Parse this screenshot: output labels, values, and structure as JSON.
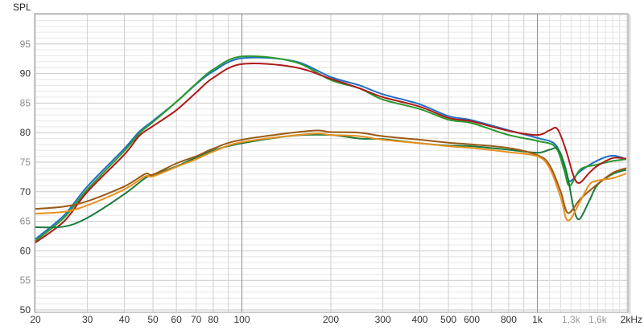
{
  "chart_data": {
    "type": "line",
    "ylabel": "SPL",
    "xscale": "log",
    "xlim": [
      20,
      2000
    ],
    "ylim": [
      50,
      100
    ],
    "grid": true,
    "y_ticks": [
      {
        "value": 50,
        "label": "50",
        "muted": false
      },
      {
        "value": 55,
        "label": "55",
        "muted": true
      },
      {
        "value": 60,
        "label": "60",
        "muted": false
      },
      {
        "value": 65,
        "label": "65",
        "muted": true
      },
      {
        "value": 70,
        "label": "70",
        "muted": false
      },
      {
        "value": 75,
        "label": "75",
        "muted": true
      },
      {
        "value": 80,
        "label": "80",
        "muted": false
      },
      {
        "value": 85,
        "label": "85",
        "muted": true
      },
      {
        "value": 90,
        "label": "90",
        "muted": false
      },
      {
        "value": 95,
        "label": "95",
        "muted": true
      }
    ],
    "x_ticks": [
      {
        "value": 20,
        "label": "20",
        "muted": false
      },
      {
        "value": 30,
        "label": "30",
        "muted": false
      },
      {
        "value": 40,
        "label": "40",
        "muted": false
      },
      {
        "value": 50,
        "label": "50",
        "muted": false
      },
      {
        "value": 60,
        "label": "60",
        "muted": false
      },
      {
        "value": 70,
        "label": "70",
        "muted": false
      },
      {
        "value": 80,
        "label": "80",
        "muted": false
      },
      {
        "value": 100,
        "label": "100",
        "muted": false
      },
      {
        "value": 200,
        "label": "200",
        "muted": false
      },
      {
        "value": 300,
        "label": "300",
        "muted": false
      },
      {
        "value": 400,
        "label": "400",
        "muted": false
      },
      {
        "value": 500,
        "label": "500",
        "muted": false
      },
      {
        "value": 600,
        "label": "600",
        "muted": false
      },
      {
        "value": 800,
        "label": "800",
        "muted": false
      },
      {
        "value": 1000,
        "label": "1k",
        "muted": false
      },
      {
        "value": 1300,
        "label": "1,3k",
        "muted": true
      },
      {
        "value": 1600,
        "label": "1,6k",
        "muted": true
      },
      {
        "value": 2000,
        "label": "2kHz",
        "muted": false
      }
    ],
    "series": [
      {
        "color": "#1f6fc4",
        "points": [
          [
            20,
            62
          ],
          [
            25,
            66
          ],
          [
            30,
            70.9
          ],
          [
            40,
            77.3
          ],
          [
            45,
            80.2
          ],
          [
            50,
            82
          ],
          [
            60,
            85.2
          ],
          [
            70,
            88.2
          ],
          [
            80,
            90.4
          ],
          [
            100,
            92.6
          ],
          [
            150,
            92.1
          ],
          [
            200,
            89.4
          ],
          [
            250,
            88
          ],
          [
            300,
            86.5
          ],
          [
            400,
            84.8
          ],
          [
            500,
            82.8
          ],
          [
            600,
            82.1
          ],
          [
            800,
            80.4
          ],
          [
            1000,
            79.1
          ],
          [
            1150,
            78
          ],
          [
            1230,
            74.5
          ],
          [
            1285,
            71.8
          ],
          [
            1400,
            73.5
          ],
          [
            1600,
            75.3
          ],
          [
            1800,
            76.1
          ],
          [
            2000,
            75.5
          ]
        ]
      },
      {
        "color": "#2a9a2a",
        "points": [
          [
            20,
            61.7
          ],
          [
            25,
            65.6
          ],
          [
            30,
            70.4
          ],
          [
            40,
            76.9
          ],
          [
            45,
            79.9
          ],
          [
            50,
            81.8
          ],
          [
            60,
            85.2
          ],
          [
            70,
            88.3
          ],
          [
            80,
            90.7
          ],
          [
            100,
            92.9
          ],
          [
            150,
            92
          ],
          [
            200,
            88.9
          ],
          [
            250,
            87.5
          ],
          [
            300,
            85.6
          ],
          [
            400,
            84
          ],
          [
            500,
            82.2
          ],
          [
            600,
            81.6
          ],
          [
            800,
            79.6
          ],
          [
            1000,
            78.6
          ],
          [
            1150,
            77.6
          ],
          [
            1230,
            73.8
          ],
          [
            1285,
            71
          ],
          [
            1400,
            73.8
          ],
          [
            1600,
            74.6
          ],
          [
            1800,
            75.2
          ],
          [
            2000,
            75.5
          ]
        ]
      },
      {
        "color": "#b01818",
        "points": [
          [
            20,
            61.4
          ],
          [
            25,
            65
          ],
          [
            30,
            70
          ],
          [
            40,
            76.3
          ],
          [
            45,
            79.5
          ],
          [
            50,
            81.1
          ],
          [
            60,
            83.8
          ],
          [
            70,
            86.8
          ],
          [
            80,
            89.3
          ],
          [
            100,
            91.6
          ],
          [
            150,
            91.1
          ],
          [
            200,
            89.1
          ],
          [
            250,
            87.5
          ],
          [
            300,
            86
          ],
          [
            400,
            84.4
          ],
          [
            500,
            82.5
          ],
          [
            600,
            81.9
          ],
          [
            800,
            80.3
          ],
          [
            1000,
            79.6
          ],
          [
            1100,
            80.4
          ],
          [
            1170,
            80.6
          ],
          [
            1250,
            77
          ],
          [
            1330,
            72.5
          ],
          [
            1390,
            71.5
          ],
          [
            1500,
            73.2
          ],
          [
            1600,
            74.4
          ],
          [
            1800,
            75.7
          ],
          [
            2000,
            75.6
          ]
        ]
      },
      {
        "color": "#1a7a3c",
        "points": [
          [
            20,
            64
          ],
          [
            25,
            64.1
          ],
          [
            30,
            65.6
          ],
          [
            40,
            69.6
          ],
          [
            47,
            72.3
          ],
          [
            50,
            72.8
          ],
          [
            60,
            74.3
          ],
          [
            70,
            75.8
          ],
          [
            80,
            77
          ],
          [
            100,
            78.2
          ],
          [
            150,
            79.5
          ],
          [
            200,
            79.6
          ],
          [
            250,
            79
          ],
          [
            300,
            78.9
          ],
          [
            400,
            78.2
          ],
          [
            500,
            77.8
          ],
          [
            600,
            77.7
          ],
          [
            800,
            77.1
          ],
          [
            1000,
            76.6
          ],
          [
            1100,
            77.1
          ],
          [
            1180,
            77.1
          ],
          [
            1260,
            73
          ],
          [
            1330,
            67
          ],
          [
            1390,
            65.4
          ],
          [
            1500,
            68.5
          ],
          [
            1600,
            71.2
          ],
          [
            1800,
            73
          ],
          [
            2000,
            73.7
          ]
        ]
      },
      {
        "color": "#9a5a14",
        "points": [
          [
            20,
            67.1
          ],
          [
            25,
            67.5
          ],
          [
            30,
            68.4
          ],
          [
            40,
            70.9
          ],
          [
            47,
            73
          ],
          [
            50,
            72.9
          ],
          [
            60,
            74.8
          ],
          [
            70,
            76
          ],
          [
            80,
            77.3
          ],
          [
            100,
            78.8
          ],
          [
            170,
            80.3
          ],
          [
            200,
            80.1
          ],
          [
            250,
            80
          ],
          [
            300,
            79.4
          ],
          [
            400,
            78.8
          ],
          [
            500,
            78.3
          ],
          [
            600,
            78
          ],
          [
            800,
            77.4
          ],
          [
            1000,
            76.2
          ],
          [
            1100,
            74.5
          ],
          [
            1200,
            70
          ],
          [
            1270,
            66.4
          ],
          [
            1400,
            68.8
          ],
          [
            1600,
            71.3
          ],
          [
            1800,
            73.2
          ],
          [
            2000,
            74
          ]
        ]
      },
      {
        "color": "#e8901f",
        "points": [
          [
            20,
            66.3
          ],
          [
            25,
            66.6
          ],
          [
            30,
            67.7
          ],
          [
            40,
            70.4
          ],
          [
            47,
            72.6
          ],
          [
            50,
            72.6
          ],
          [
            60,
            74.2
          ],
          [
            70,
            75.5
          ],
          [
            80,
            76.8
          ],
          [
            100,
            78.4
          ],
          [
            170,
            79.8
          ],
          [
            200,
            79.6
          ],
          [
            250,
            79.4
          ],
          [
            300,
            78.8
          ],
          [
            400,
            78.2
          ],
          [
            500,
            77.7
          ],
          [
            600,
            77.4
          ],
          [
            800,
            76.7
          ],
          [
            1000,
            76
          ],
          [
            1100,
            74
          ],
          [
            1200,
            69
          ],
          [
            1270,
            65.1
          ],
          [
            1400,
            68.5
          ],
          [
            1500,
            71.2
          ],
          [
            1600,
            71.9
          ],
          [
            1800,
            72.3
          ],
          [
            2000,
            73.1
          ]
        ]
      }
    ]
  }
}
